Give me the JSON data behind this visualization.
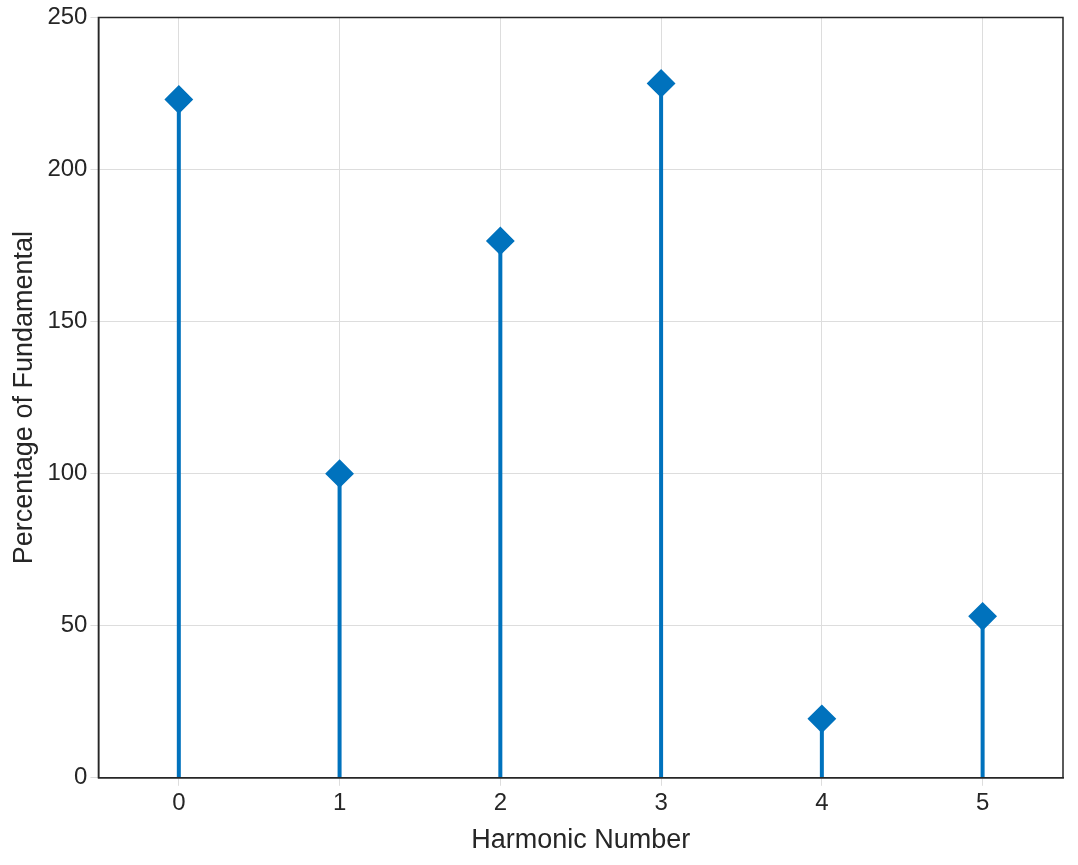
{
  "chart_data": {
    "type": "lollipop",
    "xlabel": "Harmonic Number",
    "ylabel": "Percentage of Fundamental",
    "x": [
      0,
      1,
      2,
      3,
      4,
      5
    ],
    "values": [
      223,
      100,
      176.5,
      228.3,
      19.4,
      53.1
    ],
    "color": "#0072bd",
    "marker": "diamond",
    "xlim": [
      -0.5,
      5.5
    ],
    "xticks": [
      0,
      1,
      2,
      3,
      4,
      5
    ],
    "ylim": [
      0,
      250
    ],
    "yticks": [
      0,
      50,
      100,
      150,
      200,
      250
    ],
    "grid": true
  }
}
